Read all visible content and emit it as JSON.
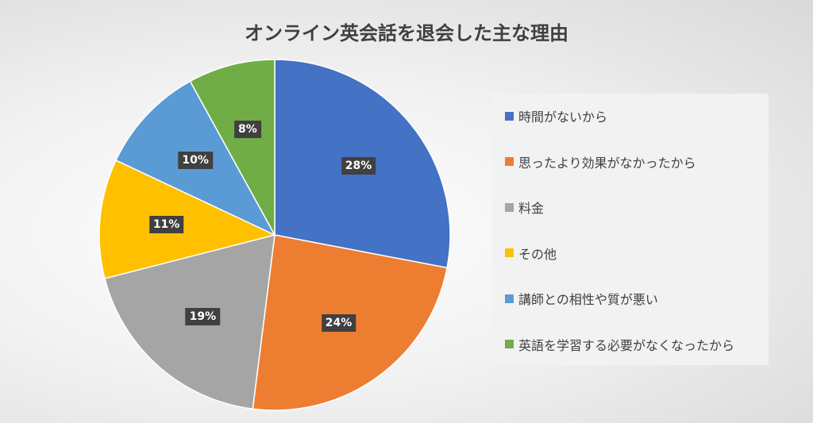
{
  "chart_data": {
    "type": "pie",
    "title": "オンライン英会話を退会した主な理由",
    "categories": [
      "時間がないから",
      "思ったより効果がなかったから",
      "料金",
      "その他",
      "講師との相性や質が悪い",
      "英語を学習する必要がなくなったから"
    ],
    "values": [
      28,
      24,
      19,
      11,
      10,
      8
    ],
    "labels": [
      "28%",
      "24%",
      "19%",
      "11%",
      "10%",
      "8%"
    ],
    "colors": [
      "#4472C4",
      "#ED7D31",
      "#A5A5A5",
      "#FFC000",
      "#5B9BD5",
      "#70AD47"
    ],
    "legend_position": "right"
  }
}
